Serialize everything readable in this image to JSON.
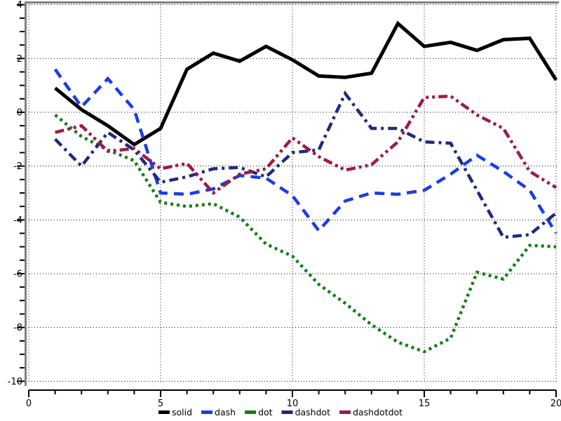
{
  "figure": {
    "background": "#ffffff"
  },
  "axes": {
    "x": {
      "min": 0,
      "max": 20,
      "major_ticks": [
        0,
        5,
        10,
        15,
        20
      ],
      "minor_step": 1,
      "labels": [
        "0",
        "5",
        "10",
        "15",
        "20"
      ]
    },
    "y": {
      "min": -10,
      "max": 4,
      "major_ticks": [
        4,
        2,
        0,
        -2,
        -4,
        -6,
        -8,
        -10
      ],
      "minor_step": 0.5,
      "labels": [
        "4",
        "2",
        "0",
        "-2",
        "-4",
        "-6",
        "-8",
        "-10"
      ]
    },
    "grid": {
      "style": "dotted",
      "color": "#000000",
      "on_major_only": true
    },
    "frame_color": "#7f7f7f",
    "axis_color": "#000000"
  },
  "legend": {
    "position": "bottom-center",
    "items": [
      {
        "label": "solid",
        "color": "#000000"
      },
      {
        "label": "dash",
        "color": "#1b3ce8"
      },
      {
        "label": "dot",
        "color": "#177d17"
      },
      {
        "label": "dashdot",
        "color": "#202a7c"
      },
      {
        "label": "dashdotdot",
        "color": "#9e1b44"
      }
    ]
  },
  "chart_data": {
    "type": "line",
    "title": "",
    "xlabel": "",
    "ylabel": "",
    "xlim": [
      0,
      20
    ],
    "ylim": [
      -10,
      4
    ],
    "grid": true,
    "legend_position": "bottom-center",
    "x": [
      1,
      2,
      3,
      4,
      5,
      6,
      7,
      8,
      9,
      10,
      11,
      12,
      13,
      14,
      15,
      16,
      17,
      18,
      19,
      20
    ],
    "series": [
      {
        "name": "solid",
        "color": "#000000",
        "line_style": "solid",
        "width": 5,
        "dash_pattern": [],
        "values": [
          0.9,
          0.1,
          -0.5,
          -1.2,
          -0.6,
          1.6,
          2.2,
          1.9,
          2.45,
          1.95,
          1.35,
          1.3,
          1.45,
          3.3,
          2.45,
          2.6,
          2.3,
          2.7,
          2.75,
          1.2
        ]
      },
      {
        "name": "dash",
        "color": "#1b3ce8",
        "line_style": "dash",
        "width": 4.5,
        "dash_pattern": [
          14,
          9
        ],
        "values": [
          1.6,
          0.2,
          1.25,
          0.1,
          -3.0,
          -3.05,
          -2.85,
          -2.35,
          -2.45,
          -3.1,
          -4.4,
          -3.3,
          -3.0,
          -3.05,
          -2.9,
          -2.3,
          -1.6,
          -2.2,
          -2.9,
          -4.5
        ]
      },
      {
        "name": "dot",
        "color": "#177d17",
        "line_style": "dot",
        "width": 4.5,
        "dash_pattern": [
          4,
          5
        ],
        "values": [
          -0.1,
          -0.9,
          -1.4,
          -1.8,
          -3.35,
          -3.5,
          -3.4,
          -3.9,
          -4.9,
          -5.35,
          -6.4,
          -7.1,
          -7.9,
          -8.55,
          -8.9,
          -8.4,
          -5.95,
          -6.2,
          -4.95,
          -5.0
        ]
      },
      {
        "name": "dashdot",
        "color": "#202a7c",
        "line_style": "dashdot",
        "width": 4.5,
        "dash_pattern": [
          13,
          6,
          4,
          6
        ],
        "values": [
          -1.0,
          -2.0,
          -0.75,
          -1.4,
          -2.6,
          -2.4,
          -2.1,
          -2.05,
          -2.4,
          -1.5,
          -1.4,
          0.7,
          -0.6,
          -0.6,
          -1.1,
          -1.15,
          -2.9,
          -4.65,
          -4.55,
          -3.75
        ]
      },
      {
        "name": "dashdotdot",
        "color": "#9e1b44",
        "line_style": "dashdotdot",
        "width": 4.5,
        "dash_pattern": [
          13,
          5,
          4,
          5,
          4,
          5
        ],
        "values": [
          -0.75,
          -0.5,
          -1.45,
          -1.35,
          -2.1,
          -1.9,
          -3.0,
          -2.3,
          -2.1,
          -0.95,
          -1.65,
          -2.15,
          -1.95,
          -1.1,
          0.55,
          0.6,
          -0.1,
          -0.6,
          -2.2,
          -2.8
        ]
      }
    ]
  }
}
